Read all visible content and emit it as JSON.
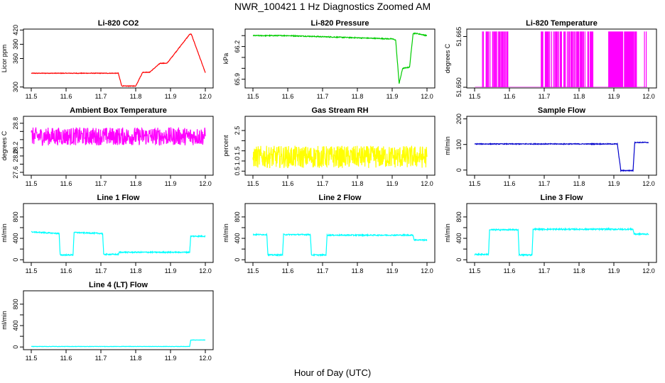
{
  "figure": {
    "title": "NWR_100421  1 Hz Diagnostics Zoomed AM",
    "xlabel": "Hour of Day (UTC)"
  },
  "chart_data": [
    {
      "type": "line",
      "title": "Li-820 CO2",
      "ylabel": "Licor ppm",
      "color": "#ff0000",
      "xlim": [
        11.5,
        12.0
      ],
      "ylim": [
        298,
        422
      ],
      "xticks": [
        "11.5",
        "11.6",
        "11.7",
        "11.8",
        "11.9",
        "12.0"
      ],
      "yticks": [
        {
          "v": 300,
          "t": "300"
        },
        {
          "v": 360,
          "t": "360"
        },
        {
          "v": 390,
          "t": "390"
        },
        {
          "v": 420,
          "t": "420"
        }
      ],
      "noise": 0.6,
      "x": [
        11.5,
        11.75,
        11.75,
        11.76,
        11.76,
        11.8,
        11.8,
        11.82,
        11.82,
        11.84,
        11.84,
        11.87,
        11.87,
        11.89,
        11.89,
        11.955,
        11.955,
        11.96,
        11.96,
        12.0
      ],
      "y": [
        329,
        329,
        329,
        302,
        302,
        302,
        302,
        331,
        331,
        331,
        331,
        350,
        350,
        350,
        350,
        411,
        411,
        411,
        411,
        330
      ]
    },
    {
      "type": "line",
      "title": "Li-820 Pressure",
      "ylabel": "kPa",
      "color": "#00cc00",
      "xlim": [
        11.5,
        12.0
      ],
      "ylim": [
        65.82,
        66.36
      ],
      "xticks": [
        "11.5",
        "11.6",
        "11.7",
        "11.8",
        "11.9",
        "12.0"
      ],
      "yticks": [
        {
          "v": 65.9,
          "t": "65.9"
        },
        {
          "v": 66.0,
          "t": ""
        },
        {
          "v": 66.1,
          "t": ""
        },
        {
          "v": 66.2,
          "t": "66.2"
        },
        {
          "v": 66.3,
          "t": ""
        }
      ],
      "noise": 0.004,
      "x": [
        11.5,
        11.6,
        11.8,
        11.9,
        11.91,
        11.92,
        11.93,
        11.93,
        11.95,
        11.96,
        11.97,
        12.0
      ],
      "y": [
        66.3,
        66.3,
        66.28,
        66.27,
        66.26,
        65.86,
        66.0,
        66.0,
        66.01,
        66.32,
        66.32,
        66.3
      ]
    },
    {
      "type": "spikes",
      "title": "Li-820 Temperature",
      "ylabel": "degrees C",
      "color": "#ff00ff",
      "xlim": [
        11.5,
        12.0
      ],
      "ylim": [
        51.6498,
        51.6672
      ],
      "xticks": [
        "11.5",
        "11.6",
        "11.7",
        "11.8",
        "11.9",
        "12.0"
      ],
      "yticks": [
        {
          "v": 51.65,
          "t": "51.650"
        },
        {
          "v": 51.665,
          "t": "51.665"
        }
      ],
      "base": 51.65,
      "top": 51.6665
    },
    {
      "type": "line",
      "title": "Ambient Box Temperature",
      "ylabel": "degrees C",
      "color": "#ff00ff",
      "xlim": [
        11.5,
        12.0
      ],
      "ylim": [
        27.53,
        28.97
      ],
      "xticks": [
        "11.5",
        "11.6",
        "11.7",
        "11.8",
        "11.9",
        "12.0"
      ],
      "yticks": [
        {
          "v": 27.6,
          "t": "27.6"
        },
        {
          "v": 27.8,
          "t": ""
        },
        {
          "v": 28.0,
          "t": "28.0"
        },
        {
          "v": 28.2,
          "t": "28.2"
        },
        {
          "v": 28.4,
          "t": ""
        },
        {
          "v": 28.6,
          "t": ""
        },
        {
          "v": 28.8,
          "t": "28.8"
        }
      ],
      "noise": 0.22,
      "x": [
        11.5,
        12.0
      ],
      "y": [
        28.48,
        28.48
      ]
    },
    {
      "type": "line",
      "title": "Gas Stream RH",
      "ylabel": "percent",
      "color": "#ffff00",
      "xlim": [
        11.5,
        12.0
      ],
      "ylim": [
        0.3,
        3.2
      ],
      "xticks": [
        "11.5",
        "11.6",
        "11.7",
        "11.8",
        "11.9",
        "12.0"
      ],
      "yticks": [
        {
          "v": 0.5,
          "t": "0.5"
        },
        {
          "v": 1.0,
          "t": "1.0"
        },
        {
          "v": 1.5,
          "t": "1.5"
        },
        {
          "v": 2.0,
          "t": ""
        },
        {
          "v": 2.5,
          "t": "2.5"
        }
      ],
      "noise": 0.55,
      "x": [
        11.5,
        12.0
      ],
      "y": [
        1.2,
        1.2
      ]
    },
    {
      "type": "line",
      "title": "Sample Flow",
      "ylabel": "ml/min",
      "color": "#0000cc",
      "xlim": [
        11.5,
        12.0
      ],
      "ylim": [
        -20,
        210
      ],
      "xticks": [
        "11.5",
        "11.6",
        "11.7",
        "11.8",
        "11.9",
        "12.0"
      ],
      "yticks": [
        {
          "v": 0,
          "t": "0"
        },
        {
          "v": 100,
          "t": "100"
        },
        {
          "v": 200,
          "t": "200"
        }
      ],
      "noise": 1.5,
      "x": [
        11.5,
        11.91,
        11.92,
        11.955,
        11.96,
        12.0
      ],
      "y": [
        102,
        102,
        -2,
        -2,
        108,
        108
      ]
    },
    {
      "type": "line",
      "title": "Line 1 Flow",
      "ylabel": "ml/min",
      "color": "#00ffff",
      "xlim": [
        11.5,
        12.0
      ],
      "ylim": [
        -50,
        1050
      ],
      "xticks": [
        "11.5",
        "11.6",
        "11.7",
        "11.8",
        "11.9",
        "12.0"
      ],
      "yticks": [
        {
          "v": 0,
          "t": "0"
        },
        {
          "v": 200,
          "t": ""
        },
        {
          "v": 400,
          "t": "400"
        },
        {
          "v": 600,
          "t": ""
        },
        {
          "v": 800,
          "t": "800"
        }
      ],
      "noise": 10,
      "x": [
        11.5,
        11.58,
        11.583,
        11.62,
        11.623,
        11.705,
        11.708,
        11.75,
        11.753,
        11.955,
        11.958,
        12.0
      ],
      "y": [
        520,
        490,
        90,
        90,
        510,
        490,
        100,
        100,
        140,
        140,
        440,
        440
      ]
    },
    {
      "type": "line",
      "title": "Line 2 Flow",
      "ylabel": "ml/min",
      "color": "#00ffff",
      "xlim": [
        11.5,
        12.0
      ],
      "ylim": [
        -50,
        1050
      ],
      "xticks": [
        "11.5",
        "11.6",
        "11.7",
        "11.8",
        "11.9",
        "12.0"
      ],
      "yticks": [
        {
          "v": 0,
          "t": "0"
        },
        {
          "v": 200,
          "t": ""
        },
        {
          "v": 400,
          "t": "400"
        },
        {
          "v": 600,
          "t": ""
        },
        {
          "v": 800,
          "t": "800"
        }
      ],
      "noise": 10,
      "x": [
        11.5,
        11.54,
        11.543,
        11.585,
        11.588,
        11.665,
        11.668,
        11.71,
        11.713,
        11.96,
        11.963,
        12.0
      ],
      "y": [
        470,
        470,
        90,
        90,
        470,
        470,
        90,
        90,
        460,
        460,
        370,
        370
      ]
    },
    {
      "type": "line",
      "title": "Line 3 Flow",
      "ylabel": "ml/min",
      "color": "#00ffff",
      "xlim": [
        11.5,
        12.0
      ],
      "ylim": [
        -50,
        1050
      ],
      "xticks": [
        "11.5",
        "11.6",
        "11.7",
        "11.8",
        "11.9",
        "12.0"
      ],
      "yticks": [
        {
          "v": 0,
          "t": "0"
        },
        {
          "v": 200,
          "t": ""
        },
        {
          "v": 400,
          "t": "400"
        },
        {
          "v": 600,
          "t": ""
        },
        {
          "v": 800,
          "t": "800"
        }
      ],
      "noise": 12,
      "x": [
        11.5,
        11.54,
        11.543,
        11.625,
        11.628,
        11.665,
        11.668,
        11.955,
        11.958,
        12.0
      ],
      "y": [
        100,
        100,
        560,
        560,
        90,
        90,
        570,
        570,
        480,
        480
      ]
    },
    {
      "type": "line",
      "title": "Line 4 (LT) Flow",
      "ylabel": "ml/min",
      "color": "#00ffff",
      "xlim": [
        11.5,
        12.0
      ],
      "ylim": [
        -50,
        1050
      ],
      "xticks": [
        "11.5",
        "11.6",
        "11.7",
        "11.8",
        "11.9",
        "12.0"
      ],
      "yticks": [
        {
          "v": 0,
          "t": "0"
        },
        {
          "v": 200,
          "t": ""
        },
        {
          "v": 400,
          "t": "400"
        },
        {
          "v": 600,
          "t": ""
        },
        {
          "v": 800,
          "t": "800"
        }
      ],
      "noise": 3,
      "x": [
        11.5,
        11.955,
        11.958,
        12.0
      ],
      "y": [
        10,
        10,
        130,
        130
      ]
    }
  ]
}
